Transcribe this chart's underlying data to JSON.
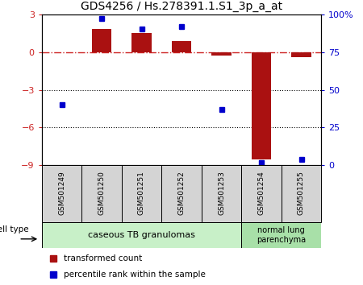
{
  "title": "GDS4256 / Hs.278391.1.S1_3p_a_at",
  "samples": [
    "GSM501249",
    "GSM501250",
    "GSM501251",
    "GSM501252",
    "GSM501253",
    "GSM501254",
    "GSM501255"
  ],
  "bar_values": [
    0.0,
    1.8,
    1.5,
    0.9,
    -0.3,
    -8.5,
    -0.4
  ],
  "dot_values": [
    40,
    97,
    90,
    92,
    37,
    2,
    4
  ],
  "left_ylim": [
    -9,
    3
  ],
  "right_ylim": [
    0,
    100
  ],
  "left_yticks": [
    -9,
    -6,
    -3,
    0,
    3
  ],
  "right_yticks": [
    0,
    25,
    50,
    75,
    100
  ],
  "right_yticklabels": [
    "0",
    "25",
    "50",
    "75",
    "100%"
  ],
  "bar_color": "#aa1111",
  "dot_color": "#0000cc",
  "hline_color": "#cc2222",
  "group1_label": "caseous TB granulomas",
  "group2_label": "normal lung\nparenchyma",
  "group1_color": "#c8f0c8",
  "group2_color": "#a8e0a8",
  "cell_type_label": "cell type",
  "legend_bar_label": "transformed count",
  "legend_dot_label": "percentile rank within the sample",
  "sample_box_color": "#d4d4d4",
  "group1_count": 5,
  "group2_count": 2
}
